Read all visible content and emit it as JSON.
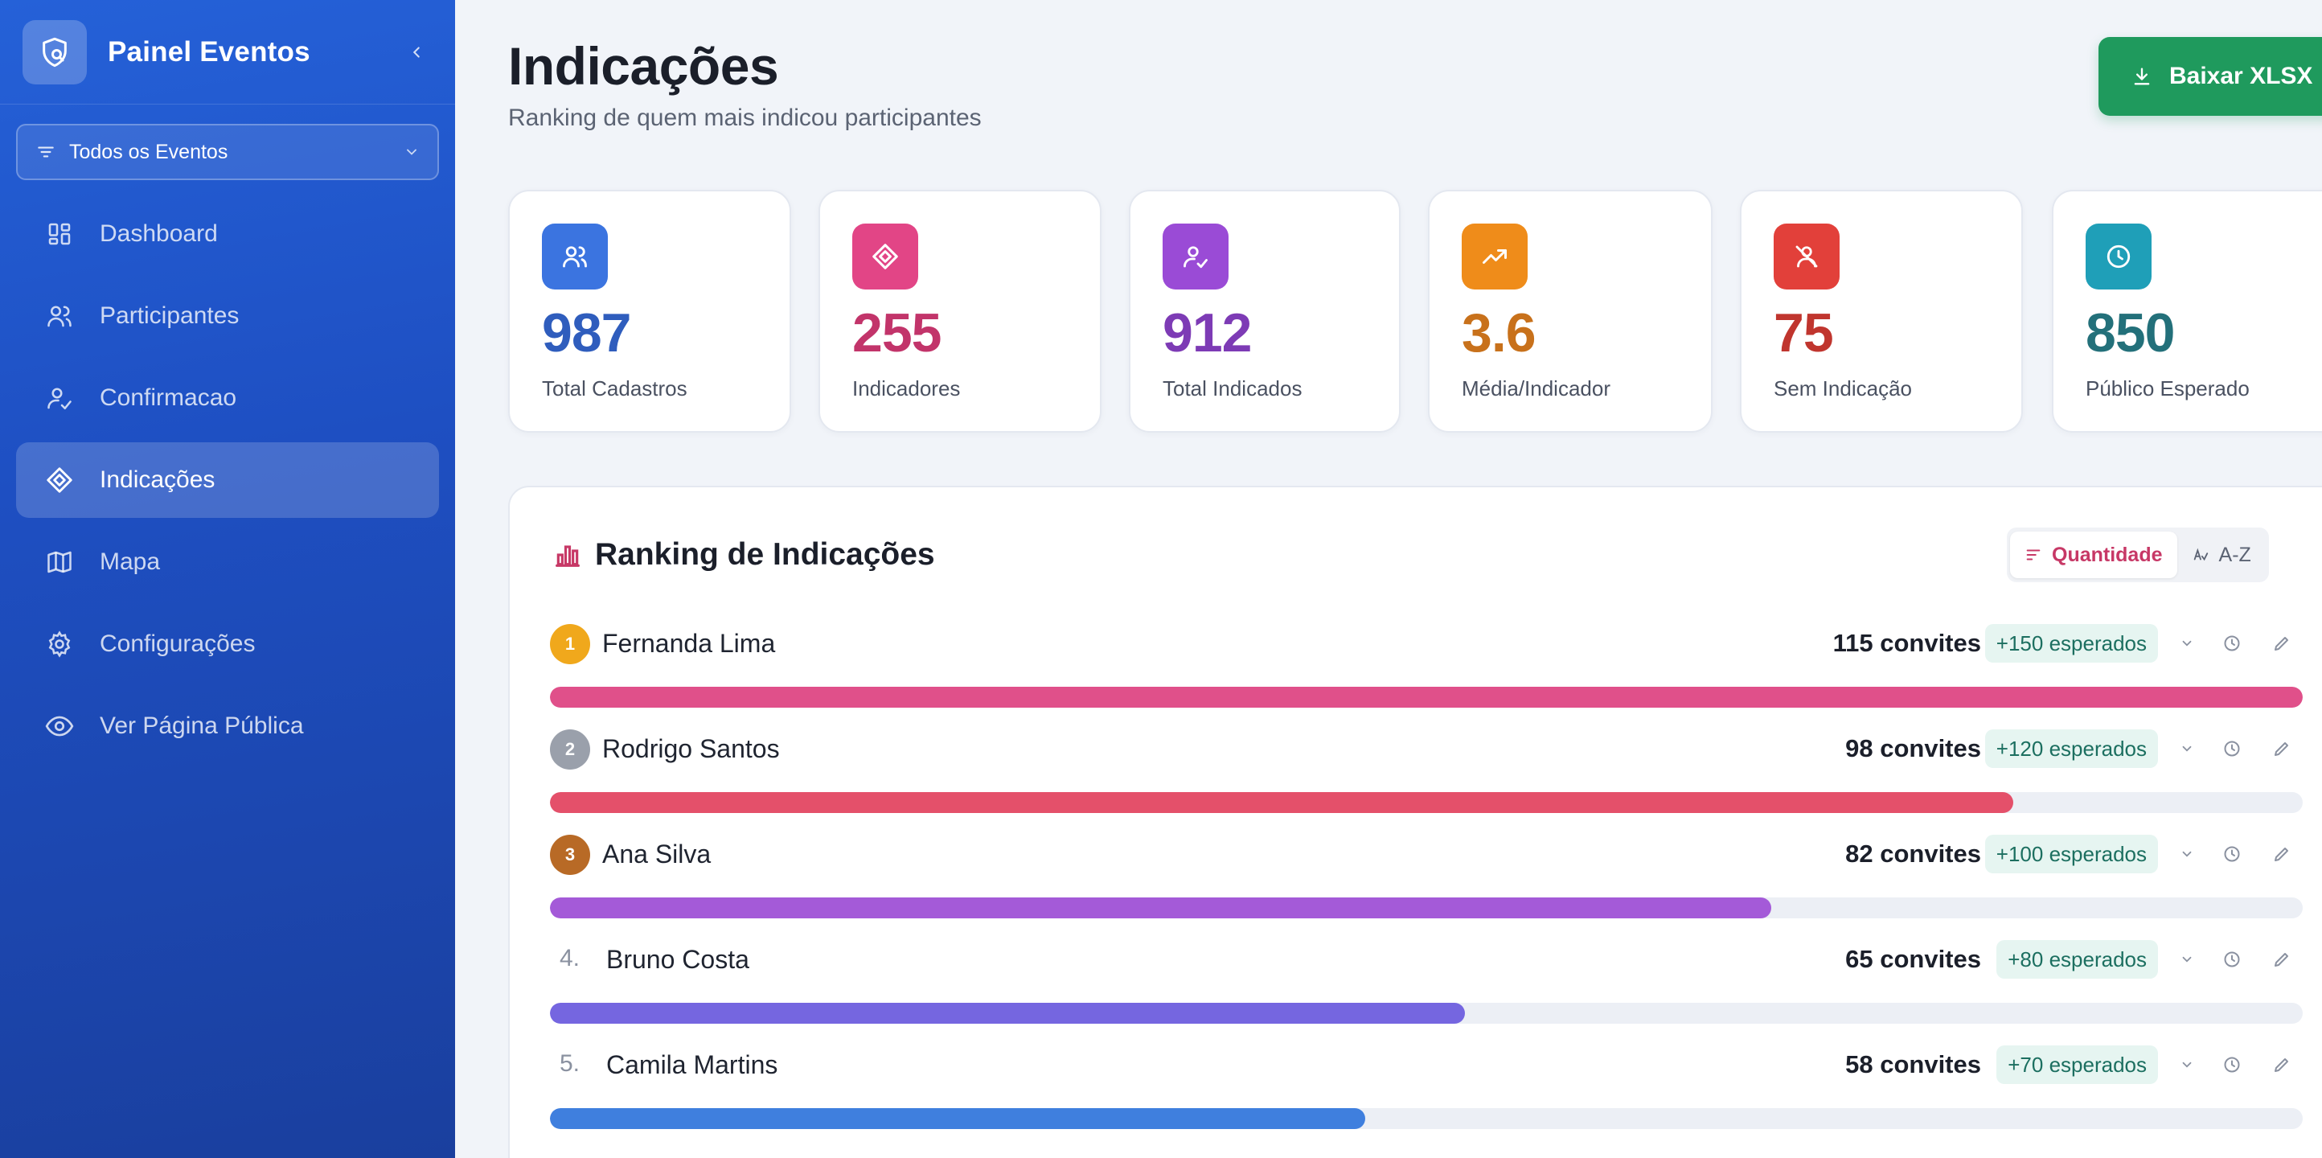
{
  "sidebar": {
    "brand": "Painel Eventos",
    "event_filter": "Todos os Eventos",
    "items": [
      {
        "label": "Dashboard",
        "icon": "dashboard-icon"
      },
      {
        "label": "Participantes",
        "icon": "users-icon"
      },
      {
        "label": "Confirmacao",
        "icon": "user-check-icon"
      },
      {
        "label": "Indicações",
        "icon": "gem-icon",
        "active": true
      },
      {
        "label": "Mapa",
        "icon": "map-icon"
      },
      {
        "label": "Configurações",
        "icon": "gear-icon"
      },
      {
        "label": "Ver Página Pública",
        "icon": "eye-icon"
      }
    ]
  },
  "header": {
    "title": "Indicações",
    "subtitle": "Ranking de quem mais indicou participantes",
    "download_label": "Baixar XLSX"
  },
  "stats": [
    {
      "value": "987",
      "label": "Total Cadastros",
      "color": "#2f5dbd",
      "icon_bg": "#3b74e0",
      "icon": "users-icon"
    },
    {
      "value": "255",
      "label": "Indicadores",
      "color": "#c2346a",
      "icon_bg": "#e24586",
      "icon": "gem-icon"
    },
    {
      "value": "912",
      "label": "Total Indicados",
      "color": "#7d3bb5",
      "icon_bg": "#9a4bd6",
      "icon": "user-check-icon"
    },
    {
      "value": "3.6",
      "label": "Média/Indicador",
      "color": "#c8711b",
      "icon_bg": "#ef8c1a",
      "icon": "trending-up-icon"
    },
    {
      "value": "75",
      "label": "Sem Indicação",
      "color": "#c0352e",
      "icon_bg": "#e2403a",
      "icon": "user-off-icon"
    },
    {
      "value": "850",
      "label": "Público Esperado",
      "color": "#23707a",
      "icon_bg": "#1f9fb8",
      "icon": "clock-icon"
    }
  ],
  "ranking": {
    "title": "Ranking de Indicações",
    "sort_quantity": "Quantidade",
    "sort_az": "A-Z",
    "rows": [
      {
        "rank": "1",
        "rank_label": "1",
        "name": "Fernanda Lima",
        "invites": "115 convites",
        "expected": "+150 esperados",
        "progress": 1.0,
        "bar_color": "#e0508a",
        "badge_color": "#f0a81c"
      },
      {
        "rank": "2",
        "rank_label": "2",
        "name": "Rodrigo Santos",
        "invites": "98 convites",
        "expected": "+120 esperados",
        "progress": 0.835,
        "bar_color": "#e4506a",
        "badge_color": "#9aa0ab"
      },
      {
        "rank": "3",
        "rank_label": "3",
        "name": "Ana Silva",
        "invites": "82 convites",
        "expected": "+100 esperados",
        "progress": 0.697,
        "bar_color": "#a45ad8",
        "badge_color": "#b86a26"
      },
      {
        "rank": "4",
        "rank_label": "4.",
        "name": "Bruno Costa",
        "invites": "65 convites",
        "expected": "+80 esperados",
        "progress": 0.522,
        "bar_color": "#7566e0",
        "badge_color": ""
      },
      {
        "rank": "5",
        "rank_label": "5.",
        "name": "Camila Martins",
        "invites": "58 convites",
        "expected": "+70 esperados",
        "progress": 0.465,
        "bar_color": "#3f7fde",
        "badge_color": ""
      }
    ]
  }
}
